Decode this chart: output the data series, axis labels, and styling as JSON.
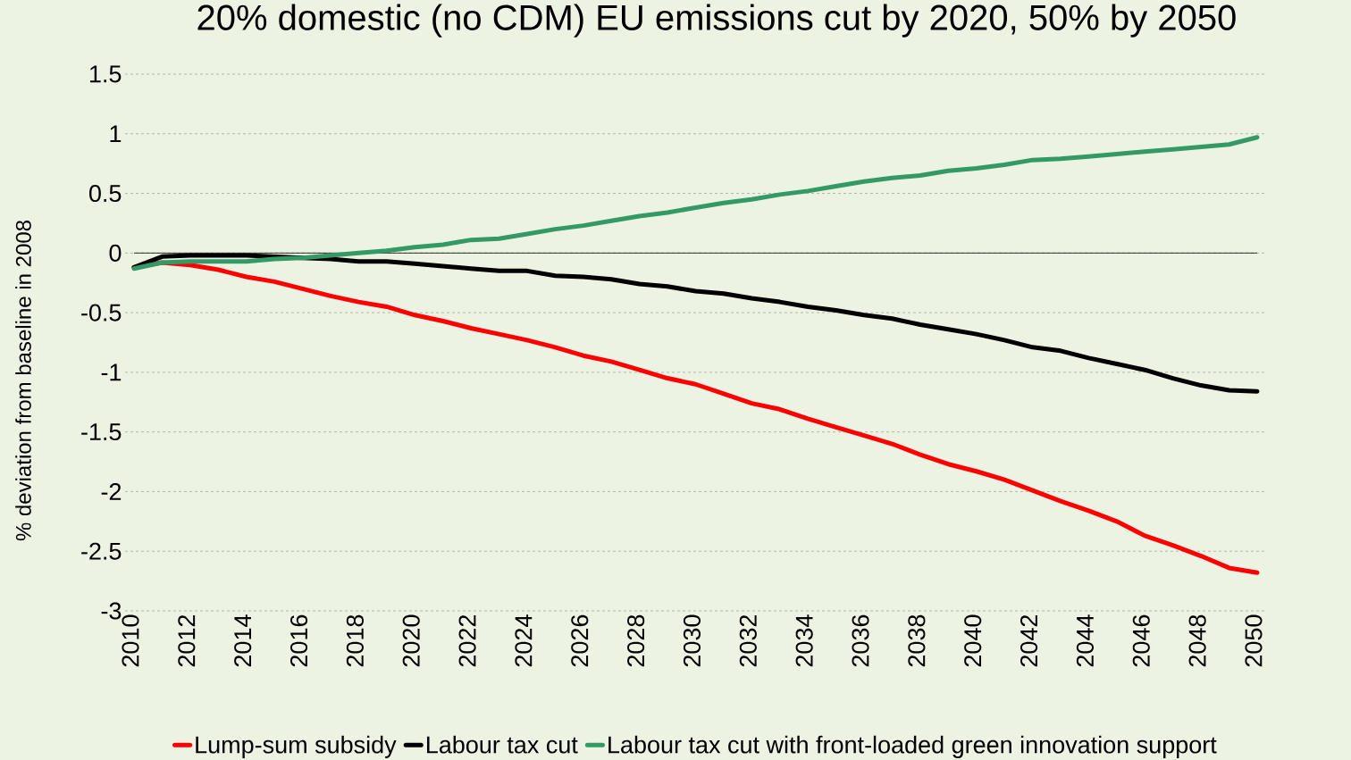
{
  "chart_data": {
    "type": "line",
    "title": "20% domestic (no CDM) EU emissions cut by 2020, 50% by 2050",
    "ylabel": "% deviation from baseline in 2008",
    "x": [
      2010,
      2011,
      2012,
      2013,
      2014,
      2015,
      2016,
      2017,
      2018,
      2019,
      2020,
      2021,
      2022,
      2023,
      2024,
      2025,
      2026,
      2027,
      2028,
      2029,
      2030,
      2031,
      2032,
      2033,
      2034,
      2035,
      2036,
      2037,
      2038,
      2039,
      2040,
      2041,
      2042,
      2043,
      2044,
      2045,
      2046,
      2047,
      2048,
      2049,
      2050
    ],
    "series": [
      {
        "name": "Lump-sum subsidy",
        "color": "#ff0000",
        "values": [
          -0.12,
          -0.08,
          -0.1,
          -0.14,
          -0.2,
          -0.24,
          -0.3,
          -0.36,
          -0.41,
          -0.45,
          -0.52,
          -0.57,
          -0.63,
          -0.68,
          -0.73,
          -0.79,
          -0.86,
          -0.91,
          -0.98,
          -1.05,
          -1.1,
          -1.18,
          -1.26,
          -1.31,
          -1.39,
          -1.46,
          -1.53,
          -1.6,
          -1.69,
          -1.77,
          -1.83,
          -1.9,
          -1.99,
          -2.08,
          -2.16,
          -2.25,
          -2.37,
          -2.45,
          -2.54,
          -2.64,
          -2.68
        ]
      },
      {
        "name": "Labour tax cut",
        "color": "#000000",
        "values": [
          -0.12,
          -0.03,
          -0.02,
          -0.02,
          -0.02,
          -0.03,
          -0.04,
          -0.05,
          -0.07,
          -0.07,
          -0.09,
          -0.11,
          -0.13,
          -0.15,
          -0.15,
          -0.19,
          -0.2,
          -0.22,
          -0.26,
          -0.28,
          -0.32,
          -0.34,
          -0.38,
          -0.41,
          -0.45,
          -0.48,
          -0.52,
          -0.55,
          -0.6,
          -0.64,
          -0.68,
          -0.73,
          -0.79,
          -0.82,
          -0.88,
          -0.93,
          -0.98,
          -1.05,
          -1.11,
          -1.15,
          -1.16
        ]
      },
      {
        "name": "Labour tax cut with front-loaded green innovation support",
        "color": "#339966",
        "values": [
          -0.13,
          -0.08,
          -0.07,
          -0.07,
          -0.07,
          -0.05,
          -0.04,
          -0.02,
          0.0,
          0.02,
          0.05,
          0.07,
          0.11,
          0.12,
          0.16,
          0.2,
          0.23,
          0.27,
          0.31,
          0.34,
          0.38,
          0.42,
          0.45,
          0.49,
          0.52,
          0.56,
          0.6,
          0.63,
          0.65,
          0.69,
          0.71,
          0.74,
          0.78,
          0.79,
          0.81,
          0.83,
          0.85,
          0.87,
          0.89,
          0.91,
          0.97
        ]
      }
    ],
    "xlim": [
      2010,
      2050
    ],
    "xticks": [
      2010,
      2012,
      2014,
      2016,
      2018,
      2020,
      2022,
      2024,
      2026,
      2028,
      2030,
      2032,
      2034,
      2036,
      2038,
      2040,
      2042,
      2044,
      2046,
      2048,
      2050
    ],
    "ylim": [
      -3,
      1.5
    ],
    "yticks": [
      -3,
      -2.5,
      -2,
      -1.5,
      -1,
      -0.5,
      0,
      0.5,
      1,
      1.5
    ],
    "ref_lines": [
      {
        "axis": "y",
        "value": 0,
        "color": "#000000"
      }
    ],
    "grid": "y",
    "legend": "bottom",
    "marker": "none",
    "line_style": "solid"
  }
}
